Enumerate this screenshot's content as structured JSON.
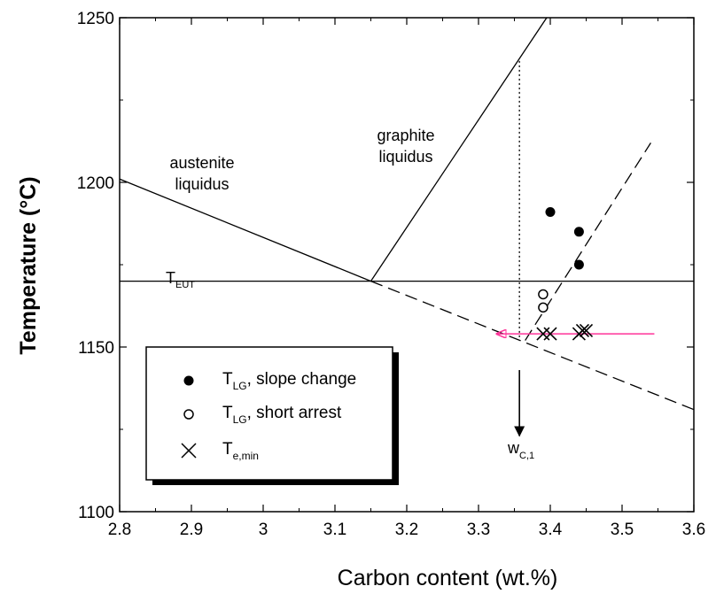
{
  "chart_data": {
    "type": "line",
    "xlabel": "Carbon content (wt.%)",
    "ylabel": "Temperature (°C)",
    "xlim": [
      2.8,
      3.6
    ],
    "ylim": [
      1100,
      1250
    ],
    "xticks": [
      "2.8",
      "2.9",
      "3",
      "3.1",
      "3.2",
      "3.3",
      "3.4",
      "3.5",
      "3.6"
    ],
    "yticks": [
      "1100",
      "1150",
      "1200",
      "1250"
    ],
    "grid": false,
    "lines": [
      {
        "id": "austenite-liquidus",
        "style": "solid",
        "x": [
          2.8,
          3.15
        ],
        "y": [
          1201,
          1170
        ]
      },
      {
        "id": "austenite-liquidus-extension",
        "style": "dashed",
        "x": [
          3.15,
          3.6
        ],
        "y": [
          1170,
          1131
        ]
      },
      {
        "id": "graphite-liquidus",
        "style": "solid",
        "x": [
          3.15,
          3.395
        ],
        "y": [
          1170,
          1250
        ]
      },
      {
        "id": "eutectic-temperature",
        "style": "solid",
        "x": [
          2.8,
          3.6
        ],
        "y": [
          1170,
          1170
        ]
      },
      {
        "id": "fit-line",
        "style": "dashed",
        "x": [
          3.365,
          3.54
        ],
        "y": [
          1152,
          1212
        ]
      },
      {
        "id": "wc1-vertical",
        "style": "dotted",
        "x": [
          3.357,
          3.357
        ],
        "y": [
          1153,
          1237
        ]
      }
    ],
    "series": [
      {
        "marker": "filled-circle",
        "x": [
          3.4,
          3.44,
          3.44
        ],
        "y": [
          1191,
          1185,
          1175
        ]
      },
      {
        "marker": "open-circle",
        "x": [
          3.39,
          3.39
        ],
        "y": [
          1166,
          1162
        ]
      },
      {
        "marker": "x",
        "x": [
          3.39,
          3.4,
          3.44,
          3.445,
          3.45
        ],
        "y": [
          1154,
          1154,
          1154,
          1155,
          1155
        ]
      }
    ],
    "arrows": [
      {
        "id": "te-min-arrow",
        "color": "#ff3399",
        "from": [
          3.545,
          1154
        ],
        "to": [
          3.325,
          1154
        ]
      },
      {
        "id": "wc1-arrow",
        "color": "#000000",
        "from": [
          3.357,
          1143
        ],
        "to": [
          3.357,
          1123
        ]
      }
    ],
    "annotations": {
      "austenite_line1": "austenite",
      "austenite_line2": "liquidus",
      "graphite_line1": "graphite",
      "graphite_line2": "liquidus",
      "teut_main": "T",
      "teut_sub": "EUT",
      "wc1_main": "w",
      "wc1_sub": "C,1"
    },
    "legend": {
      "position": "bottom-left",
      "entries": [
        {
          "marker": "filled-circle",
          "main": "T",
          "sub": "LG",
          "suffix": ", slope change"
        },
        {
          "marker": "open-circle",
          "main": "T",
          "sub": "LG",
          "suffix": ", short arrest"
        },
        {
          "marker": "x",
          "main": "T",
          "sub": "e,min",
          "suffix": ""
        }
      ]
    }
  }
}
